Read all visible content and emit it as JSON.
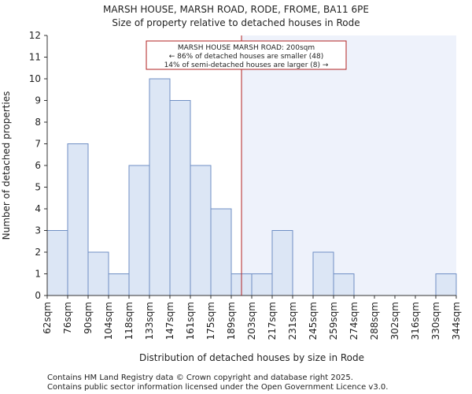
{
  "colors": {
    "bar_fill": "#dce6f5",
    "bar_stroke": "#6f8fc4",
    "highlight_bg": "#eef2fb",
    "marker_line": "#b22222",
    "annotation_border": "#b22222"
  },
  "chart_data": {
    "type": "bar",
    "title": "MARSH HOUSE, MARSH ROAD, RODE, FROME, BA11 6PE",
    "subtitle": "Size of property relative to detached houses in Rode",
    "xlabel": "Distribution of detached houses by size in Rode",
    "ylabel": "Number of detached properties",
    "ylim": [
      0,
      12
    ],
    "yticks": [
      0,
      1,
      2,
      3,
      4,
      5,
      6,
      7,
      8,
      9,
      10,
      11,
      12
    ],
    "bin_edges": [
      "62sqm",
      "76sqm",
      "90sqm",
      "104sqm",
      "118sqm",
      "133sqm",
      "147sqm",
      "161sqm",
      "175sqm",
      "189sqm",
      "203sqm",
      "217sqm",
      "231sqm",
      "245sqm",
      "259sqm",
      "274sqm",
      "288sqm",
      "302sqm",
      "316sqm",
      "330sqm",
      "344sqm"
    ],
    "values": [
      3,
      7,
      2,
      1,
      6,
      10,
      9,
      6,
      4,
      1,
      1,
      3,
      0,
      2,
      1,
      0,
      0,
      0,
      0,
      1
    ],
    "marker_value_sqm": 200,
    "marker_bin_position": 9.5,
    "annotation": {
      "line1": "MARSH HOUSE MARSH ROAD: 200sqm",
      "line2": "← 86% of detached houses are smaller (48)",
      "line3": "14% of semi-detached houses are larger (8) →"
    }
  },
  "footer": {
    "line1": "Contains HM Land Registry data © Crown copyright and database right 2025.",
    "line2": "Contains public sector information licensed under the Open Government Licence v3.0."
  }
}
